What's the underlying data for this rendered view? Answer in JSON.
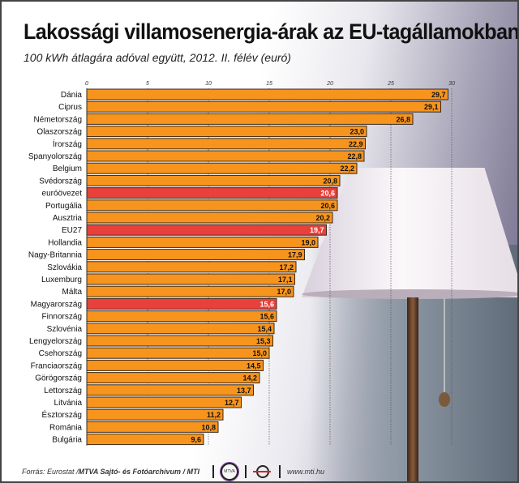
{
  "chart_data": {
    "type": "bar",
    "orientation": "horizontal",
    "title": "Lakossági villamosenergia-árak az EU-tagállamokban",
    "subtitle": "100 kWh átlagára adóval együtt, 2012. II. félév (euró)",
    "xlim": [
      0,
      30
    ],
    "ticks": [
      "0",
      "5",
      "10",
      "15",
      "20",
      "25",
      "30"
    ],
    "categories": [
      "Dánia",
      "Ciprus",
      "Németország",
      "Olaszország",
      "Írország",
      "Spanyolország",
      "Belgium",
      "Svédország",
      "euróövezet",
      "Portugália",
      "Ausztria",
      "EU27",
      "Hollandia",
      "Nagy-Britannia",
      "Szlovákia",
      "Luxemburg",
      "Málta",
      "Magyarország",
      "Finnország",
      "Szlovénia",
      "Lengyelország",
      "Csehország",
      "Franciaország",
      "Görögország",
      "Lettország",
      "Litvánia",
      "Észtország",
      "Románia",
      "Bulgária"
    ],
    "values": [
      29.7,
      29.1,
      26.8,
      23.0,
      22.9,
      22.8,
      22.2,
      20.8,
      20.6,
      20.6,
      20.2,
      19.7,
      19.0,
      17.9,
      17.2,
      17.1,
      17.0,
      15.6,
      15.6,
      15.4,
      15.3,
      15.0,
      14.5,
      14.2,
      13.7,
      12.7,
      11.2,
      10.8,
      9.6
    ],
    "labels": [
      "29,7",
      "29,1",
      "26,8",
      "23,0",
      "22,9",
      "22,8",
      "22,2",
      "20,8",
      "20,6",
      "20,6",
      "20,2",
      "19,7",
      "19,0",
      "17,9",
      "17,2",
      "17,1",
      "17,0",
      "15,6",
      "15,6",
      "15,4",
      "15,3",
      "15,0",
      "14,5",
      "14,2",
      "13,7",
      "12,7",
      "11,2",
      "10,8",
      "9,6"
    ],
    "highlighted": [
      "euróövezet",
      "EU27",
      "Magyarország"
    ],
    "colors": {
      "bar": "#f7941d",
      "highlight": "#e8403a",
      "border": "#3a2a1a"
    }
  },
  "footer": {
    "source": "Forrás: Eurostat / ",
    "agency": "MTVA Sajtó- és Fotóarchívum / MTI",
    "logo1": "MTVA",
    "url": "www.mti.hu"
  }
}
